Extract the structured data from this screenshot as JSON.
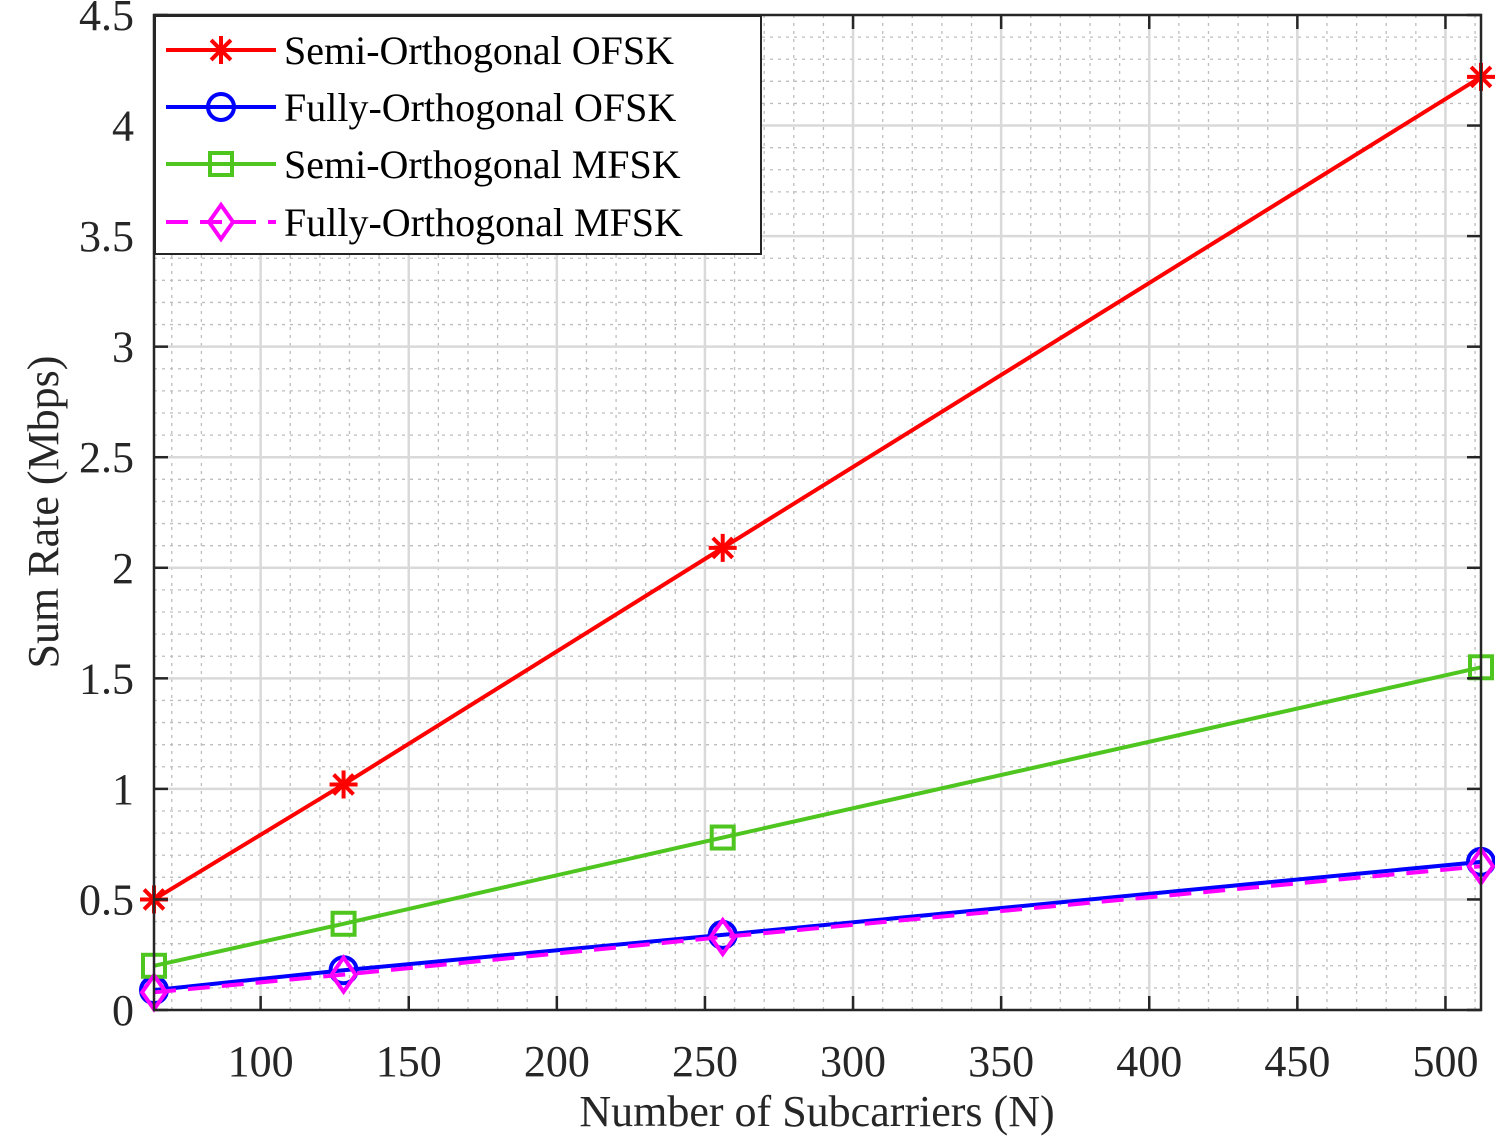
{
  "chart_data": {
    "type": "line",
    "title": "",
    "xlabel": "Number of Subcarriers (N)",
    "ylabel": "Sum Rate (Mbps)",
    "xlim": [
      64,
      512
    ],
    "ylim": [
      0,
      4.5
    ],
    "x": [
      64,
      128,
      256,
      512
    ],
    "xticks": [
      100,
      150,
      200,
      250,
      300,
      350,
      400,
      450,
      500
    ],
    "xtick_labels": [
      "100",
      "150",
      "200",
      "250",
      "300",
      "350",
      "400",
      "450",
      "500"
    ],
    "yticks": [
      0,
      0.5,
      1,
      1.5,
      2,
      2.5,
      3,
      3.5,
      4,
      4.5
    ],
    "ytick_labels": [
      "0",
      "0.5",
      "1",
      "1.5",
      "2",
      "2.5",
      "3",
      "3.5",
      "4",
      "4.5"
    ],
    "grid": true,
    "minor_grid": true,
    "legend_position": "top-left",
    "series": [
      {
        "name": "Semi-Orthogonal OFSK",
        "color": "#ff0000",
        "marker": "asterisk",
        "dash": "solid",
        "values": [
          0.5,
          1.02,
          2.09,
          4.22
        ]
      },
      {
        "name": "Fully-Orthogonal OFSK",
        "color": "#0000ff",
        "marker": "circle",
        "dash": "solid",
        "values": [
          0.09,
          0.18,
          0.34,
          0.67
        ]
      },
      {
        "name": "Semi-Orthogonal MFSK",
        "color": "#4fc520",
        "marker": "square",
        "dash": "solid",
        "values": [
          0.2,
          0.39,
          0.78,
          1.55
        ]
      },
      {
        "name": "Fully-Orthogonal MFSK",
        "color": "#ff00ff",
        "marker": "diamond",
        "dash": "dashed",
        "values": [
          0.08,
          0.16,
          0.33,
          0.65
        ]
      }
    ]
  }
}
